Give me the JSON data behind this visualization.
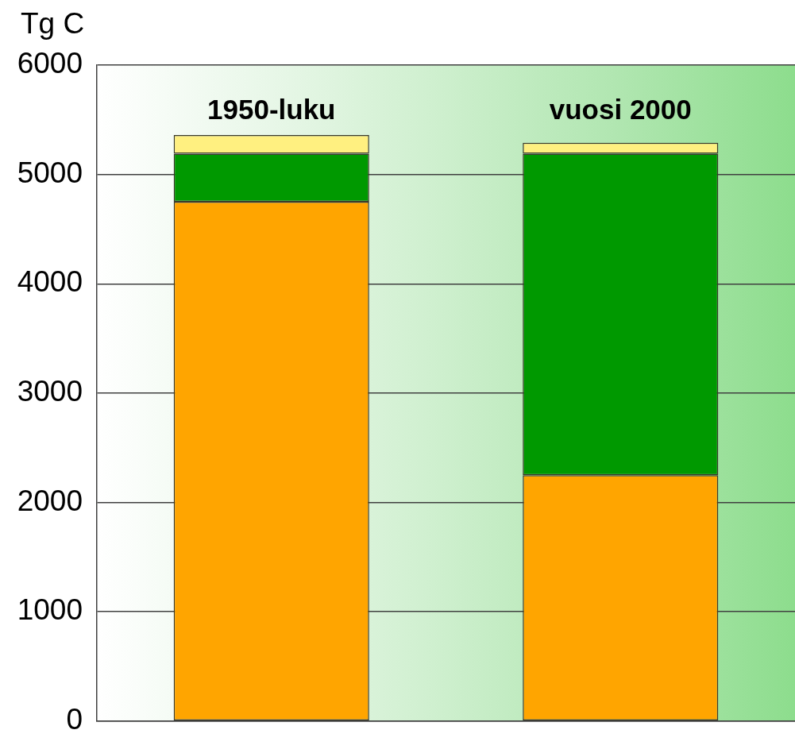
{
  "chart_data": {
    "type": "bar",
    "ylabel": "Tg C",
    "categories": [
      "1950-luku",
      "vuosi 2000"
    ],
    "stacked": true,
    "series": [
      {
        "color": "#ffa500",
        "values": [
          4750,
          2250
        ]
      },
      {
        "color": "#009900",
        "values": [
          440,
          2940
        ]
      },
      {
        "color": "#fff080",
        "values": [
          170,
          100
        ]
      }
    ],
    "ylim": [
      0,
      6000
    ],
    "yticks": [
      0,
      1000,
      2000,
      3000,
      4000,
      5000,
      6000
    ],
    "grid": "y",
    "legend": false
  }
}
